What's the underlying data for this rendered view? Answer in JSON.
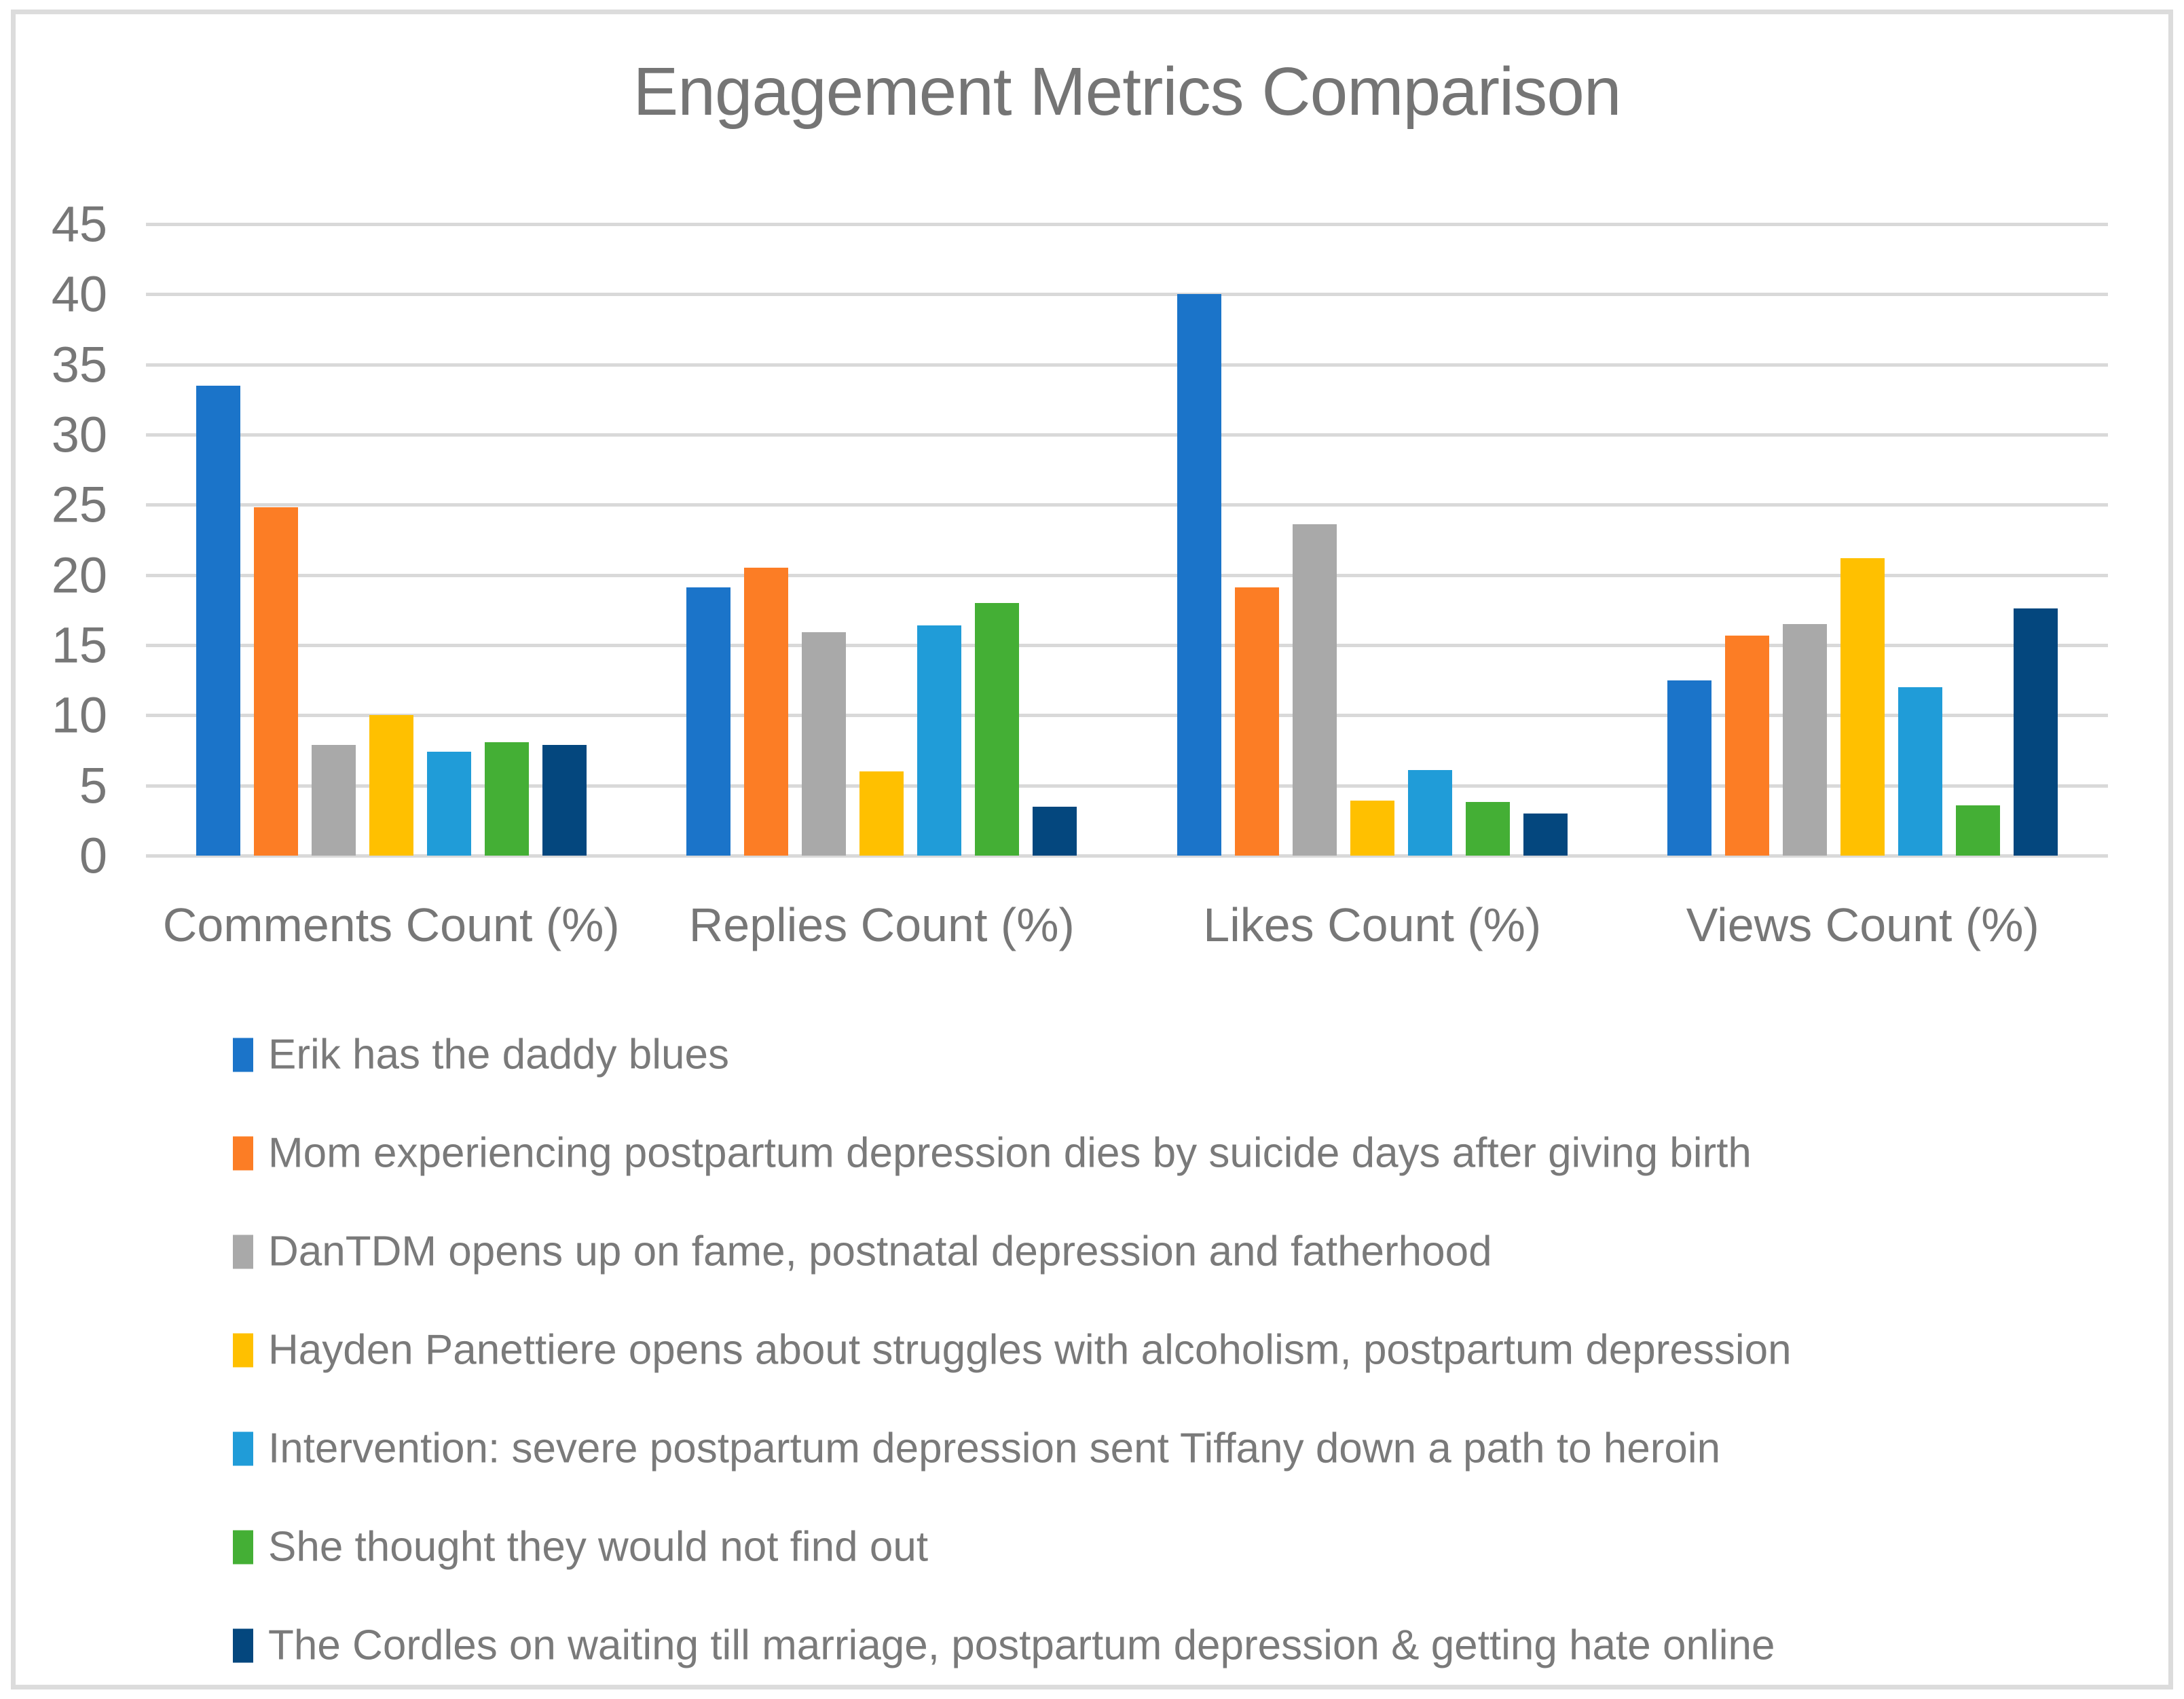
{
  "chart_data": {
    "type": "bar",
    "title": "Engagement Metrics Comparison",
    "categories": [
      "Comments Count (%)",
      "Replies Count (%)",
      "Likes Count (%)",
      "Views Count (%)"
    ],
    "series": [
      {
        "name": "Erik has the daddy blues",
        "color": "#1b74c9",
        "values": [
          33.5,
          19.1,
          40.0,
          12.5
        ]
      },
      {
        "name": "Mom experiencing postpartum depression dies by suicide days after giving birth",
        "color": "#fc7d25",
        "values": [
          24.8,
          20.5,
          19.1,
          15.7
        ]
      },
      {
        "name": "DanTDM opens up on fame, postnatal depression and fatherhood",
        "color": "#a9a9a9",
        "values": [
          7.9,
          15.9,
          23.6,
          16.5
        ]
      },
      {
        "name": "Hayden Panettiere opens about struggles with alcoholism, postpartum depression",
        "color": "#ffc000",
        "values": [
          10.0,
          6.0,
          3.9,
          21.2
        ]
      },
      {
        "name": "Intervention: severe postpartum depression sent Tiffany down a path to heroin",
        "color": "#209cd8",
        "values": [
          7.4,
          16.4,
          6.1,
          12.0
        ]
      },
      {
        "name": "She thought they would not find out",
        "color": "#44af35",
        "values": [
          8.1,
          18.0,
          3.8,
          3.6
        ]
      },
      {
        "name": "The Cordles on waiting till marriage, postpartum depression & getting hate online",
        "color": "#04477e",
        "values": [
          7.9,
          3.5,
          3.0,
          17.6
        ]
      }
    ],
    "ylim": [
      0,
      45
    ],
    "yticks": [
      0,
      5,
      10,
      15,
      20,
      25,
      30,
      35,
      40,
      45
    ],
    "grid": true,
    "legend_position": "bottom",
    "gridline_color": "#d9d9d9",
    "text_color": "#777777"
  }
}
